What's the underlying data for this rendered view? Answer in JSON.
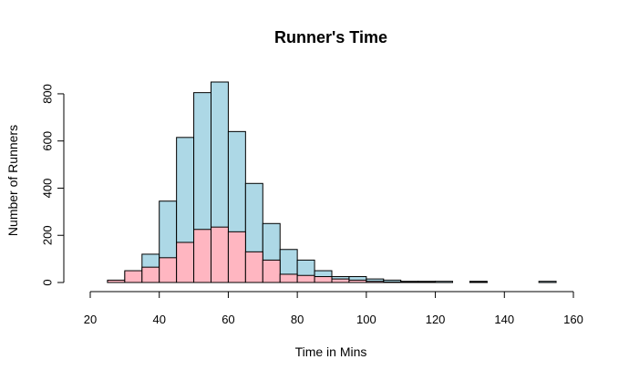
{
  "chart_data": {
    "type": "bar",
    "title": "Runner's Time",
    "xlabel": "Time in Mins",
    "ylabel": "Number of Runners",
    "xlim": [
      20,
      160
    ],
    "ylim": [
      0,
      850
    ],
    "x_ticks": [
      "20",
      "40",
      "60",
      "80",
      "100",
      "120",
      "140",
      "160"
    ],
    "y_ticks": [
      "0",
      "200",
      "400",
      "600",
      "800"
    ],
    "grid": false,
    "bin_width": 5,
    "bin_starts": [
      25,
      30,
      35,
      40,
      45,
      50,
      55,
      60,
      65,
      70,
      75,
      80,
      85,
      90,
      95,
      100,
      105,
      110,
      115,
      120,
      125,
      130,
      135,
      140,
      145,
      150
    ],
    "series": [
      {
        "color": "#add8e6",
        "values": [
          5,
          45,
          120,
          345,
          615,
          805,
          850,
          640,
          420,
          250,
          140,
          95,
          50,
          25,
          25,
          15,
          10,
          5,
          5,
          5,
          0,
          5,
          0,
          0,
          0,
          5
        ]
      },
      {
        "color": "#ffb6c1",
        "values": [
          10,
          50,
          65,
          105,
          170,
          225,
          235,
          215,
          130,
          95,
          35,
          30,
          25,
          15,
          10,
          5,
          2,
          2,
          2,
          0,
          0,
          2,
          0,
          0,
          0,
          0
        ]
      }
    ]
  }
}
